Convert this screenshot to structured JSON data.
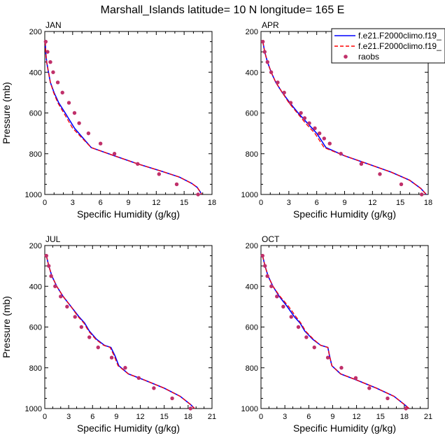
{
  "title": "Marshall_Islands  latitude= 10 N longitude= 165 E",
  "chart_data": [
    {
      "type": "line",
      "panel": "JAN",
      "xlabel": "Specific Humidity (g/kg)",
      "ylabel": "Pressure (mb)",
      "xlim": [
        0,
        18
      ],
      "ylim": [
        1000,
        200
      ],
      "xticks": [
        0,
        3,
        6,
        9,
        12,
        15,
        18
      ],
      "yticks": [
        200,
        400,
        600,
        800,
        1000
      ],
      "series": [
        {
          "name": "f.e21.F2000climo.f19_",
          "style": "solid",
          "color": "#0000ff",
          "x": [
            0.05,
            0.1,
            0.2,
            0.4,
            0.6,
            1.0,
            1.5,
            2.2,
            3.2,
            5.0,
            7.5,
            10.0,
            12.5,
            14.5,
            15.8,
            16.4,
            16.7,
            16.9
          ],
          "y": [
            250,
            300,
            350,
            400,
            450,
            500,
            550,
            600,
            675,
            770,
            810,
            850,
            885,
            915,
            945,
            965,
            985,
            1000
          ]
        },
        {
          "name": "f.e21.F2000climo.f19_",
          "style": "dashed",
          "color": "#ff0000",
          "x": [
            0.05,
            0.1,
            0.2,
            0.4,
            0.6,
            0.95,
            1.4,
            2.05,
            3.0,
            5.0,
            7.5,
            10.0,
            12.5,
            14.5,
            15.8,
            16.4,
            16.7,
            16.9
          ],
          "y": [
            250,
            300,
            350,
            400,
            450,
            500,
            550,
            600,
            675,
            770,
            810,
            850,
            885,
            915,
            945,
            965,
            985,
            1000
          ]
        },
        {
          "name": "raobs",
          "style": "markers",
          "color": "#c0306a",
          "x": [
            0.1,
            0.3,
            0.6,
            0.9,
            1.4,
            1.9,
            2.6,
            3.2,
            3.7,
            4.7,
            6.0,
            7.5,
            10.0,
            12.3,
            14.2,
            16.5
          ],
          "y": [
            250,
            300,
            350,
            400,
            450,
            500,
            550,
            600,
            650,
            700,
            750,
            800,
            850,
            900,
            950,
            1000
          ]
        }
      ]
    },
    {
      "type": "line",
      "panel": "APR",
      "xlabel": "Specific Humidity (g/kg)",
      "ylabel": "",
      "xlim": [
        0,
        18
      ],
      "ylim": [
        1000,
        200
      ],
      "xticks": [
        0,
        3,
        6,
        9,
        12,
        15,
        18
      ],
      "yticks": [
        200,
        400,
        600,
        800,
        1000
      ],
      "series": [
        {
          "name": "f.e21.F2000climo.f19_",
          "style": "solid",
          "color": "#0000ff",
          "x": [
            0.2,
            0.4,
            0.7,
            1.1,
            1.6,
            2.3,
            3.1,
            4.0,
            5.0,
            6.0,
            7.0,
            9.0,
            11.5,
            14.0,
            16.0,
            17.2,
            17.8
          ],
          "y": [
            250,
            300,
            350,
            400,
            450,
            500,
            550,
            600,
            650,
            700,
            770,
            810,
            850,
            890,
            930,
            970,
            1000
          ]
        },
        {
          "name": "f.e21.F2000climo.f19_",
          "style": "dashed",
          "color": "#ff0000",
          "x": [
            0.2,
            0.4,
            0.7,
            1.1,
            1.6,
            2.3,
            3.0,
            3.9,
            4.8,
            5.8,
            6.8,
            9.0,
            11.5,
            14.0,
            16.0,
            17.2,
            17.8
          ],
          "y": [
            250,
            300,
            350,
            400,
            450,
            500,
            550,
            600,
            650,
            700,
            770,
            810,
            850,
            890,
            930,
            970,
            1000
          ]
        },
        {
          "name": "raobs",
          "style": "markers",
          "color": "#c0306a",
          "x": [
            0.2,
            0.4,
            0.7,
            1.1,
            1.8,
            2.5,
            3.2,
            4.3,
            4.7,
            5.2,
            5.8,
            6.3,
            6.8,
            7.4,
            8.6,
            10.8,
            12.8,
            15.1,
            17.3
          ],
          "y": [
            250,
            300,
            350,
            400,
            450,
            500,
            550,
            600,
            625,
            650,
            675,
            700,
            725,
            750,
            800,
            850,
            900,
            950,
            1000
          ]
        }
      ]
    },
    {
      "type": "line",
      "panel": "JUL",
      "xlabel": "Specific Humidity (g/kg)",
      "ylabel": "Pressure (mb)",
      "xlim": [
        0,
        21
      ],
      "ylim": [
        1000,
        200
      ],
      "xticks": [
        0,
        3,
        6,
        9,
        12,
        15,
        18,
        21
      ],
      "yticks": [
        200,
        400,
        600,
        800,
        1000
      ],
      "series": [
        {
          "name": "f.e21.F2000climo.f19_",
          "style": "solid",
          "color": "#0000ff",
          "x": [
            0.2,
            0.5,
            0.9,
            1.5,
            2.3,
            3.3,
            4.3,
            5.0,
            5.6,
            6.5,
            7.5,
            8.3,
            8.8,
            9.3,
            10.5,
            12.5,
            15.0,
            17.0,
            18.3,
            18.8
          ],
          "y": [
            250,
            300,
            350,
            400,
            450,
            500,
            550,
            580,
            620,
            660,
            690,
            700,
            740,
            790,
            830,
            860,
            900,
            940,
            980,
            1000
          ]
        },
        {
          "name": "f.e21.F2000climo.f19_",
          "style": "dashed",
          "color": "#ff0000",
          "x": [
            0.2,
            0.5,
            0.9,
            1.5,
            2.3,
            3.3,
            4.2,
            4.9,
            5.5,
            6.4,
            7.4,
            8.2,
            8.7,
            9.2,
            10.5,
            12.5,
            15.0,
            17.0,
            18.3,
            18.8
          ],
          "y": [
            250,
            300,
            350,
            400,
            450,
            500,
            550,
            580,
            620,
            660,
            690,
            700,
            740,
            790,
            830,
            860,
            900,
            940,
            980,
            1000
          ]
        },
        {
          "name": "raobs",
          "style": "markers",
          "color": "#c0306a",
          "x": [
            0.2,
            0.5,
            0.8,
            1.3,
            2.0,
            2.8,
            3.8,
            4.6,
            5.6,
            6.7,
            8.4,
            10.1,
            11.8,
            13.7,
            16.0,
            18.3
          ],
          "y": [
            250,
            300,
            350,
            400,
            450,
            500,
            550,
            600,
            650,
            700,
            750,
            800,
            850,
            900,
            950,
            1000
          ]
        }
      ]
    },
    {
      "type": "line",
      "panel": "OCT",
      "xlabel": "Specific Humidity (g/kg)",
      "ylabel": "",
      "xlim": [
        0,
        21
      ],
      "ylim": [
        1000,
        200
      ],
      "xticks": [
        0,
        3,
        6,
        9,
        12,
        15,
        18,
        21
      ],
      "yticks": [
        200,
        400,
        600,
        800,
        1000
      ],
      "series": [
        {
          "name": "f.e21.F2000climo.f19_",
          "style": "solid",
          "color": "#0000ff",
          "x": [
            0.2,
            0.5,
            0.9,
            1.5,
            2.3,
            3.3,
            4.2,
            4.9,
            5.5,
            6.5,
            7.5,
            8.4,
            8.6,
            8.9,
            10.0,
            12.0,
            14.5,
            16.7,
            18.0,
            18.6
          ],
          "y": [
            250,
            300,
            350,
            400,
            450,
            500,
            550,
            580,
            620,
            660,
            690,
            700,
            740,
            790,
            830,
            860,
            900,
            940,
            980,
            1000
          ]
        },
        {
          "name": "f.e21.F2000climo.f19_",
          "style": "dashed",
          "color": "#ff0000",
          "x": [
            0.2,
            0.5,
            0.9,
            1.5,
            2.4,
            3.5,
            4.4,
            5.0,
            5.6,
            6.6,
            7.5,
            8.4,
            8.6,
            8.9,
            10.0,
            12.0,
            14.5,
            16.7,
            18.0,
            18.6
          ],
          "y": [
            250,
            300,
            350,
            400,
            450,
            500,
            550,
            580,
            620,
            660,
            690,
            700,
            740,
            790,
            830,
            860,
            900,
            940,
            980,
            1000
          ]
        },
        {
          "name": "raobs",
          "style": "markers",
          "color": "#c0306a",
          "x": [
            0.2,
            0.5,
            0.8,
            1.3,
            2.0,
            2.8,
            3.8,
            4.7,
            5.7,
            6.7,
            8.4,
            10.1,
            11.9,
            13.6,
            15.9,
            18.2
          ],
          "y": [
            250,
            300,
            350,
            400,
            450,
            500,
            550,
            600,
            650,
            700,
            750,
            800,
            850,
            900,
            950,
            1000
          ]
        }
      ]
    }
  ],
  "legend": {
    "placement": "top-right of APR panel",
    "entries": [
      {
        "label": "f.e21.F2000climo.f19_",
        "style": "solid",
        "color": "#0000ff"
      },
      {
        "label": "f.e21.F2000climo.f19_",
        "style": "dashed",
        "color": "#ff0000"
      },
      {
        "label": "raobs",
        "style": "markers",
        "color": "#c0306a"
      }
    ]
  }
}
